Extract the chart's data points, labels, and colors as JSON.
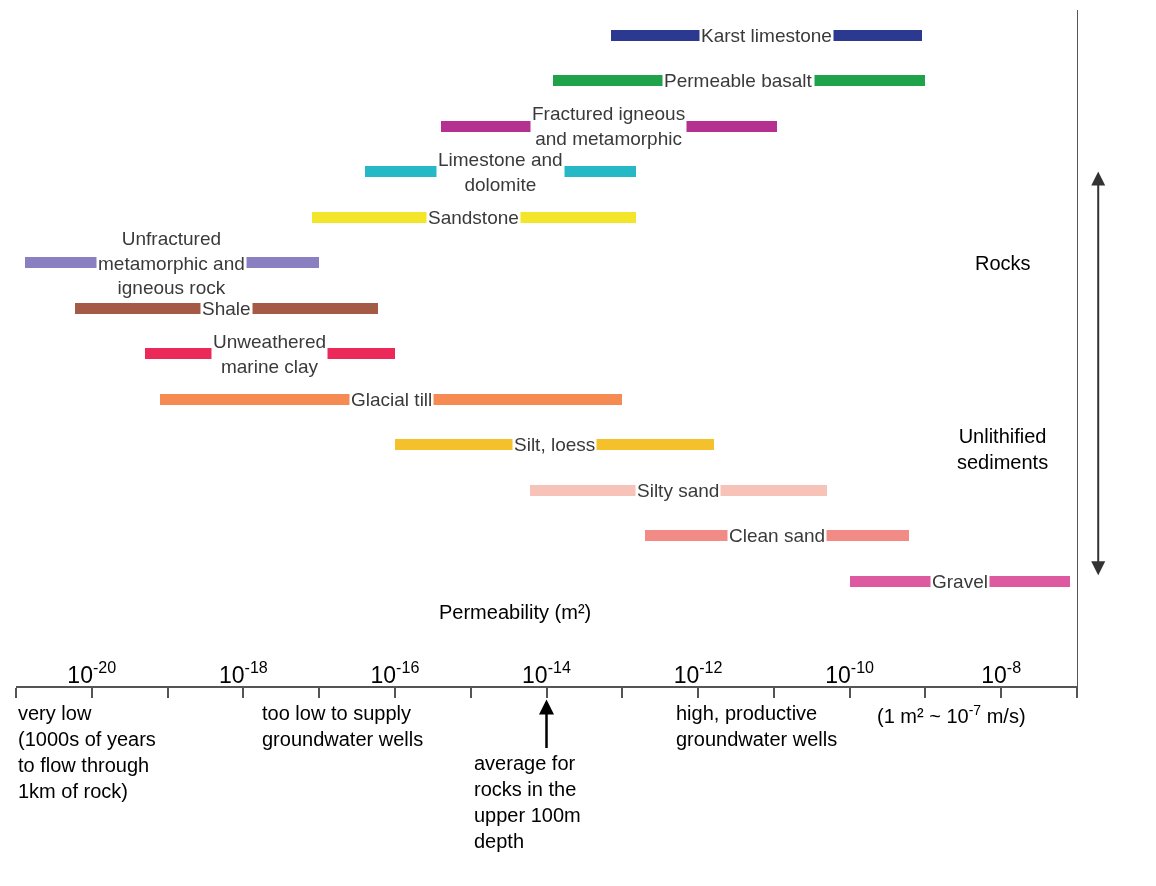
{
  "chart_data": {
    "type": "bar",
    "orientation": "horizontal",
    "log": "x",
    "xlabel": "Permeability (m²)",
    "categories": [
      "Karst limestone",
      "Permeable basalt",
      "Fractured igneous\nand metamorphic",
      "Limestone and\ndolomite",
      "Sandstone",
      "Unfractured\nmetamorphic and\nigneous rock",
      "Shale",
      "Unweathered\nmarine clay",
      "Glacial till",
      "Silt, loess",
      "Silty sand",
      "Clean sand",
      "Gravel"
    ],
    "base": [
      7e-14,
      1.2e-14,
      4e-16,
      4e-17,
      8e-18,
      1.3e-21,
      6e-21,
      5e-20,
      8e-20,
      1e-16,
      6e-15,
      2e-13,
      1e-10
    ],
    "values": [
      8.9993e-10,
      9.99988e-10,
      1.09996e-11,
      1.4996e-13,
      1.49992e-13,
      9.9987e-18,
      5.9994e-17,
      9.995e-17,
      9.99992e-14,
      1.5999e-12,
      4.9994e-11,
      5.998e-10,
      7.99e-08
    ],
    "colors": [
      "#2b3990",
      "#1fa24a",
      "#b5318f",
      "#27b8c8",
      "#f2e52a",
      "#8a7fc0",
      "#a55a45",
      "#ec2a5a",
      "#f58b52",
      "#f4c02c",
      "#f7c3b8",
      "#f28a86",
      "#dd5aa0"
    ],
    "xlim": [
      1e-21,
      1e-07
    ],
    "xticks": [
      {
        "value": 1e-20,
        "label": "10$^{-20}$"
      },
      {
        "value": 1e-18,
        "label": "10$^{-18}$"
      },
      {
        "value": 1e-16,
        "label": "10$^{-16}$"
      },
      {
        "value": 1e-14,
        "label": "10$^{-14}$"
      },
      {
        "value": 1e-12,
        "label": "10$^{-12}$"
      },
      {
        "value": 1e-10,
        "label": "10$^{-10}$"
      },
      {
        "value": 1e-08,
        "label": "10$^{-8}$"
      }
    ],
    "tick_labels": "x",
    "annotations": [
      "Rocks",
      "Unlithified\nsediments",
      "very low\n(1000s of years\nto flow through\n1km of rock)",
      "too low to supply\ngroundwater wells",
      "average for\nrocks in the\nupper 100m\ndepth",
      "high, productive\ngroundwater wells",
      "(1 m² ~ 10$^{-7}$ m/s)"
    ]
  }
}
